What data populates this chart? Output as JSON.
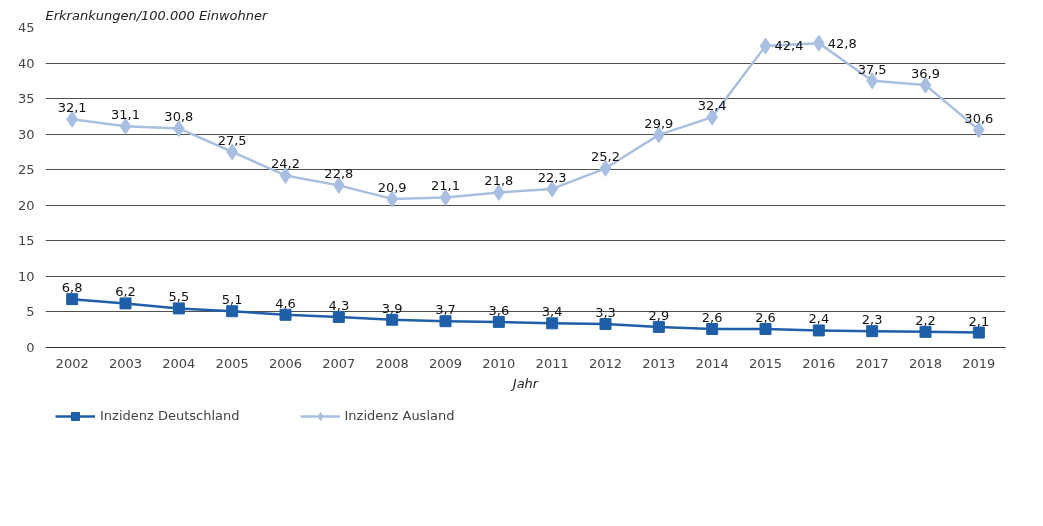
{
  "chart_data": {
    "type": "line",
    "ylabel": "Erkrankungen/100.000 Einwohner",
    "xlabel": "Jahr",
    "categories": [
      "2002",
      "2003",
      "2004",
      "2005",
      "2006",
      "2007",
      "2008",
      "2009",
      "2010",
      "2011",
      "2012",
      "2013",
      "2014",
      "2015",
      "2016",
      "2017",
      "2018",
      "2019"
    ],
    "series": [
      {
        "name": "Inzidenz Deutschland",
        "color": "#1f5fa8",
        "marker": "square",
        "values": [
          6.8,
          6.2,
          5.5,
          5.1,
          4.6,
          4.3,
          3.9,
          3.7,
          3.6,
          3.4,
          3.3,
          2.9,
          2.6,
          2.6,
          2.4,
          2.3,
          2.2,
          2.1
        ],
        "value_labels": [
          "6,8",
          "6,2",
          "5,5",
          "5,1",
          "4,6",
          "4,3",
          "3,9",
          "3,7",
          "3,6",
          "3,4",
          "3,3",
          "2,9",
          "2,6",
          "2,6",
          "2,4",
          "2,3",
          "2,2",
          "2,1"
        ]
      },
      {
        "name": "Inzidenz Ausland",
        "color": "#a9bfe2",
        "marker": "diamond",
        "values": [
          32.1,
          31.1,
          30.8,
          27.5,
          24.2,
          22.8,
          20.9,
          21.1,
          21.8,
          22.3,
          25.2,
          29.9,
          32.4,
          42.4,
          42.8,
          37.5,
          36.9,
          30.6
        ],
        "value_labels": [
          "32,1",
          "31,1",
          "30,8",
          "27,5",
          "24,2",
          "22,8",
          "20,9",
          "21,1",
          "21,8",
          "22,3",
          "25,2",
          "29,9",
          "32,4",
          "42,4",
          "42,8",
          "37,5",
          "36,9",
          "30,6"
        ]
      }
    ],
    "ylim": [
      0,
      45
    ],
    "yticks": [
      0,
      5,
      10,
      15,
      20,
      25,
      30,
      35,
      40,
      45
    ],
    "grid": "y",
    "legend": "bottom left",
    "line_style": "solid"
  }
}
